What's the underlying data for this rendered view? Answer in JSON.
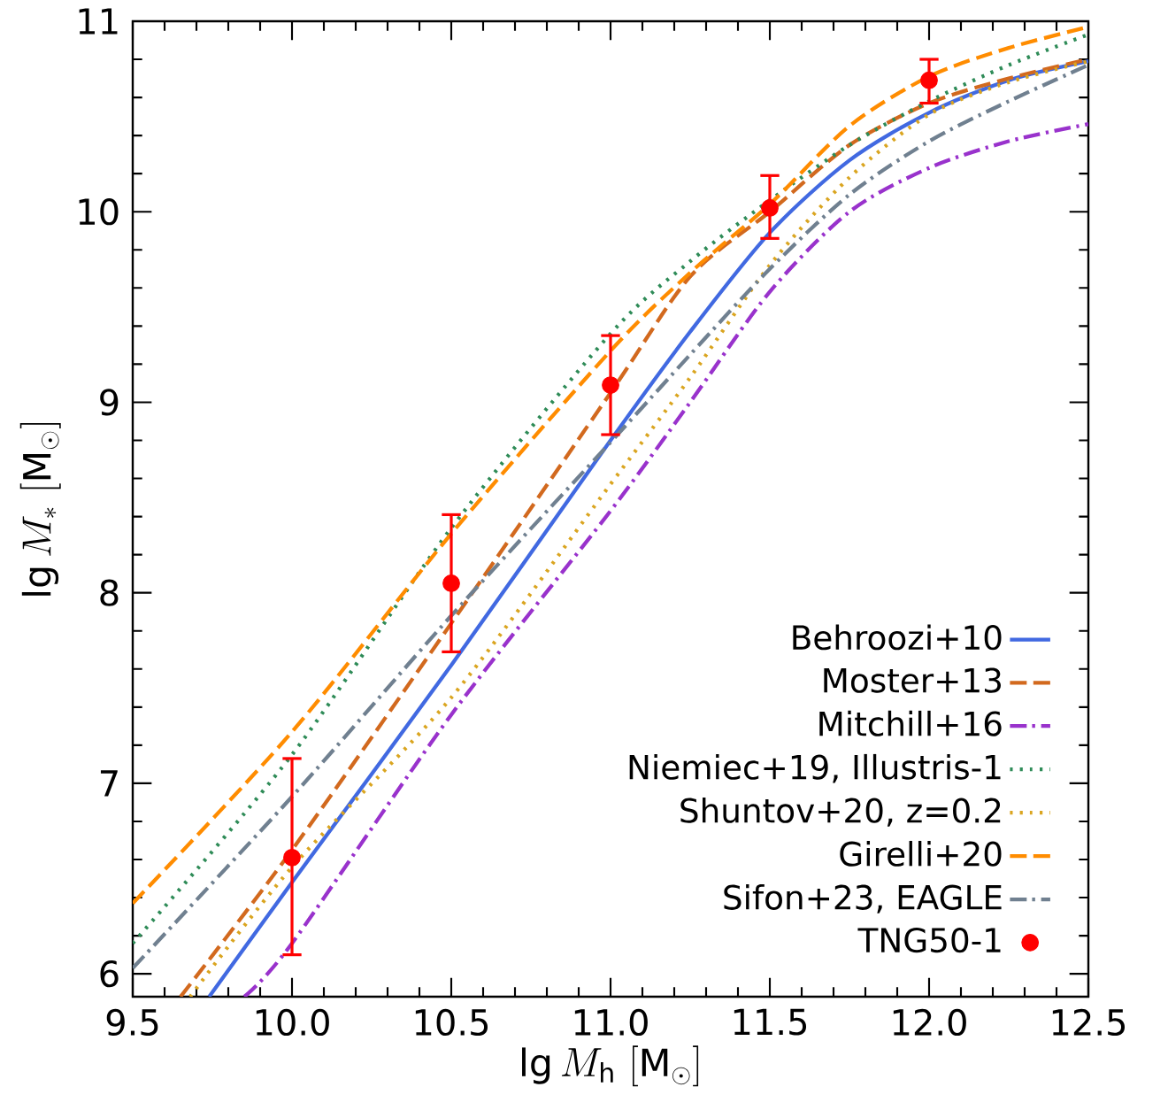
{
  "chart_data": {
    "type": "line",
    "xlabel": "\\lg M_\\mathrm{h}\\ [\\mathrm{M}_\\odot]",
    "ylabel": "\\lg M_*\\ [\\mathrm{M}_\\odot]",
    "xlim": [
      9.5,
      12.5
    ],
    "ylim": [
      5.88,
      11
    ],
    "xticks": [
      {
        "value": 9.5,
        "label": "9.5"
      },
      {
        "value": 10,
        "label": "10.0"
      },
      {
        "value": 10.5,
        "label": "10.5"
      },
      {
        "value": 11,
        "label": "11.0"
      },
      {
        "value": 11.5,
        "label": "11.5"
      },
      {
        "value": 12,
        "label": "12.0"
      },
      {
        "value": 12.5,
        "label": "12.5"
      }
    ],
    "yticks": [
      6,
      7,
      8,
      9,
      10,
      11
    ],
    "legend": "bottom right",
    "grid": false,
    "series": [
      {
        "name": "Behroozi+10",
        "color": "#4169e1",
        "line_style": "solid",
        "x": [
          9.74,
          10.0,
          10.5,
          11.0,
          11.25,
          11.5,
          11.75,
          12.0,
          12.25,
          12.5
        ],
        "values": [
          5.88,
          6.48,
          7.62,
          8.8,
          9.37,
          9.89,
          10.27,
          10.52,
          10.69,
          10.79
        ]
      },
      {
        "name": "Moster+13",
        "color": "#d2691e",
        "line_style": "dashed",
        "x": [
          9.65,
          10.0,
          10.5,
          11.0,
          11.25,
          11.5,
          11.75,
          12.0,
          12.25,
          12.5
        ],
        "values": [
          5.88,
          6.65,
          7.84,
          9.05,
          9.66,
          10.0,
          10.35,
          10.57,
          10.7,
          10.8
        ]
      },
      {
        "name": "Mitchill+16",
        "color": "#9932cc",
        "line_style": "dashdot",
        "x": [
          9.85,
          10.0,
          10.5,
          11.0,
          11.25,
          11.5,
          11.75,
          12.0,
          12.25,
          12.5
        ],
        "values": [
          5.88,
          6.16,
          7.36,
          8.43,
          9.0,
          9.58,
          10.0,
          10.23,
          10.37,
          10.46
        ]
      },
      {
        "name": "Niemiec+19, Illustris-1",
        "color": "#2e8b57",
        "line_style": "dotted",
        "x": [
          9.5,
          10.0,
          10.5,
          11.0,
          11.25,
          11.5,
          11.75,
          12.0,
          12.25,
          12.5
        ],
        "values": [
          6.16,
          7.15,
          8.34,
          9.36,
          9.74,
          10.06,
          10.35,
          10.58,
          10.77,
          10.93
        ]
      },
      {
        "name": "Shuntov+20, z=0.2",
        "color": "#daa520",
        "line_style": "dotted",
        "x": [
          9.68,
          10.0,
          10.5,
          11.0,
          11.25,
          11.5,
          11.75,
          12.0,
          12.25,
          12.5
        ],
        "values": [
          5.88,
          6.56,
          7.45,
          8.57,
          9.13,
          9.72,
          10.18,
          10.51,
          10.68,
          10.79
        ]
      },
      {
        "name": "Girelli+20",
        "color": "#ff8c00",
        "line_style": "dashed",
        "x": [
          9.5,
          10.0,
          10.5,
          11.0,
          11.25,
          11.5,
          11.75,
          12.0,
          12.25,
          12.5
        ],
        "values": [
          6.37,
          7.27,
          8.31,
          9.27,
          9.68,
          10.04,
          10.45,
          10.71,
          10.86,
          10.97
        ]
      },
      {
        "name": "Sifon+23, EAGLE",
        "color": "#708090",
        "line_style": "dashdot",
        "x": [
          9.5,
          10.0,
          10.5,
          11.0,
          11.25,
          11.5,
          11.75,
          12.0,
          12.25,
          12.5
        ],
        "values": [
          6.03,
          6.93,
          7.88,
          8.79,
          9.25,
          9.7,
          10.09,
          10.37,
          10.58,
          10.77
        ]
      },
      {
        "name": "TNG50-1",
        "color": "#ff0000",
        "type": "scatter",
        "marker": "circle",
        "x": [
          10.0,
          10.5,
          11.0,
          11.5,
          12.0
        ],
        "values": [
          6.61,
          8.05,
          9.09,
          10.02,
          10.69
        ],
        "errors": [
          [
            6.1,
            7.13
          ],
          [
            7.69,
            8.41
          ],
          [
            8.83,
            9.35
          ],
          [
            9.86,
            10.19
          ],
          [
            10.57,
            10.8
          ]
        ]
      }
    ]
  }
}
